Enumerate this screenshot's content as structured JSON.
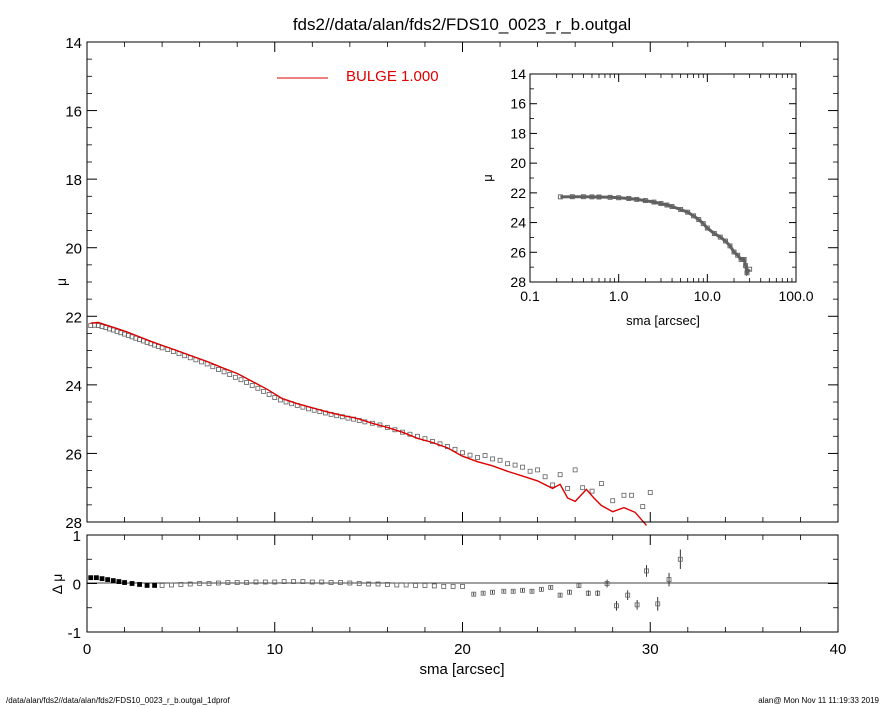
{
  "footer": {
    "left": "/data/alan/fds2//data/alan/fds2/FDS10_0023_r_b.outgal_1dprof",
    "right": "alan@  Mon Nov 11 11:19:33 2019"
  },
  "colors": {
    "model": "#dd0000",
    "data": "#606060",
    "axes": "#000000"
  },
  "chart_data": [
    {
      "id": "main",
      "type": "scatter",
      "title": "fds2//data/alan/fds2/FDS10_0023_r_b.outgal",
      "xlabel": "",
      "ylabel": "μ",
      "xlim": [
        0,
        40
      ],
      "ylim": [
        28,
        14
      ],
      "y_inverted": true,
      "yticks": [
        14,
        16,
        18,
        20,
        22,
        24,
        26,
        28
      ],
      "legend": {
        "placement": "top-center",
        "label": "BULGE  1.000"
      },
      "series": [
        {
          "name": "data",
          "points": [
            [
              0.2,
              22.27
            ],
            [
              0.4,
              22.26
            ],
            [
              0.6,
              22.27
            ],
            [
              0.8,
              22.3
            ],
            [
              1.0,
              22.33
            ],
            [
              1.2,
              22.37
            ],
            [
              1.4,
              22.4
            ],
            [
              1.6,
              22.44
            ],
            [
              1.8,
              22.48
            ],
            [
              2.0,
              22.52
            ],
            [
              2.2,
              22.56
            ],
            [
              2.4,
              22.6
            ],
            [
              2.6,
              22.64
            ],
            [
              2.8,
              22.68
            ],
            [
              3.0,
              22.72
            ],
            [
              3.2,
              22.76
            ],
            [
              3.4,
              22.8
            ],
            [
              3.6,
              22.84
            ],
            [
              3.8,
              22.88
            ],
            [
              4.0,
              22.92
            ],
            [
              4.3,
              22.97
            ],
            [
              4.6,
              23.03
            ],
            [
              4.9,
              23.09
            ],
            [
              5.2,
              23.15
            ],
            [
              5.5,
              23.21
            ],
            [
              5.8,
              23.27
            ],
            [
              6.1,
              23.33
            ],
            [
              6.4,
              23.39
            ],
            [
              6.7,
              23.47
            ],
            [
              7.0,
              23.55
            ],
            [
              7.3,
              23.62
            ],
            [
              7.6,
              23.7
            ],
            [
              7.9,
              23.78
            ],
            [
              8.2,
              23.85
            ],
            [
              8.5,
              23.93
            ],
            [
              8.8,
              24.02
            ],
            [
              9.1,
              24.1
            ],
            [
              9.4,
              24.19
            ],
            [
              9.7,
              24.28
            ],
            [
              10.0,
              24.37
            ],
            [
              10.3,
              24.44
            ],
            [
              10.6,
              24.5
            ],
            [
              10.9,
              24.55
            ],
            [
              11.2,
              24.6
            ],
            [
              11.5,
              24.65
            ],
            [
              11.8,
              24.7
            ],
            [
              12.1,
              24.74
            ],
            [
              12.4,
              24.78
            ],
            [
              12.7,
              24.82
            ],
            [
              13.0,
              24.86
            ],
            [
              13.3,
              24.9
            ],
            [
              13.6,
              24.93
            ],
            [
              13.9,
              24.97
            ],
            [
              14.2,
              25.0
            ],
            [
              14.5,
              25.04
            ],
            [
              14.8,
              25.08
            ],
            [
              15.2,
              25.12
            ],
            [
              15.6,
              25.17
            ],
            [
              16.0,
              25.24
            ],
            [
              16.4,
              25.31
            ],
            [
              16.8,
              25.38
            ],
            [
              17.2,
              25.44
            ],
            [
              17.6,
              25.5
            ],
            [
              18.0,
              25.57
            ],
            [
              18.4,
              25.65
            ],
            [
              18.8,
              25.72
            ],
            [
              19.2,
              25.8
            ],
            [
              19.6,
              25.88
            ],
            [
              20.0,
              25.98
            ],
            [
              20.4,
              26.05
            ],
            [
              20.8,
              26.12
            ],
            [
              21.2,
              26.06
            ],
            [
              21.6,
              26.16
            ],
            [
              22.0,
              26.2
            ],
            [
              22.4,
              26.3
            ],
            [
              22.8,
              26.34
            ],
            [
              23.2,
              26.4
            ],
            [
              23.6,
              26.52
            ],
            [
              24.0,
              26.48
            ],
            [
              24.4,
              26.68
            ],
            [
              24.8,
              26.92
            ],
            [
              25.2,
              26.62
            ],
            [
              25.6,
              27.02
            ],
            [
              26.0,
              26.48
            ],
            [
              26.4,
              27.0
            ],
            [
              26.9,
              27.1
            ],
            [
              27.4,
              26.88
            ],
            [
              28.0,
              27.38
            ],
            [
              28.6,
              27.22
            ],
            [
              29.0,
              27.22
            ],
            [
              29.6,
              27.55
            ],
            [
              30.0,
              27.14
            ]
          ]
        },
        {
          "name": "BULGE  1.000",
          "points": [
            [
              0.2,
              22.2
            ],
            [
              0.6,
              22.18
            ],
            [
              1.0,
              22.25
            ],
            [
              1.6,
              22.36
            ],
            [
              2.2,
              22.47
            ],
            [
              2.8,
              22.6
            ],
            [
              3.4,
              22.73
            ],
            [
              4.0,
              22.85
            ],
            [
              4.8,
              23.0
            ],
            [
              5.6,
              23.16
            ],
            [
              6.4,
              23.32
            ],
            [
              7.2,
              23.5
            ],
            [
              8.0,
              23.67
            ],
            [
              8.8,
              23.9
            ],
            [
              9.6,
              24.13
            ],
            [
              10.4,
              24.4
            ],
            [
              11.2,
              24.55
            ],
            [
              12.0,
              24.67
            ],
            [
              12.8,
              24.79
            ],
            [
              13.6,
              24.89
            ],
            [
              14.4,
              24.98
            ],
            [
              15.2,
              25.12
            ],
            [
              16.0,
              25.24
            ],
            [
              16.8,
              25.38
            ],
            [
              17.6,
              25.56
            ],
            [
              18.4,
              25.68
            ],
            [
              19.2,
              25.84
            ],
            [
              20.0,
              26.08
            ],
            [
              20.8,
              26.24
            ],
            [
              21.6,
              26.36
            ],
            [
              22.4,
              26.52
            ],
            [
              23.2,
              26.66
            ],
            [
              24.0,
              26.8
            ],
            [
              24.8,
              27.02
            ],
            [
              25.2,
              26.9
            ],
            [
              25.6,
              27.3
            ],
            [
              26.0,
              27.4
            ],
            [
              26.6,
              27.05
            ],
            [
              27.0,
              27.3
            ],
            [
              27.4,
              27.52
            ],
            [
              28.0,
              27.7
            ],
            [
              28.6,
              27.58
            ],
            [
              29.2,
              27.72
            ],
            [
              29.8,
              28.1
            ]
          ]
        }
      ]
    },
    {
      "id": "inset",
      "type": "scatter",
      "title": "",
      "xlabel": "sma [arcsec]",
      "ylabel": "μ",
      "x_scale": "log",
      "xlim": [
        0.1,
        100.0
      ],
      "xtick_labels": [
        "0.1",
        "1.0",
        "10.0",
        "100.0"
      ],
      "xticks": [
        0.1,
        1.0,
        10.0,
        100.0
      ],
      "ylim": [
        28,
        14
      ],
      "y_inverted": true,
      "yticks": [
        14,
        16,
        18,
        20,
        22,
        24,
        26,
        28
      ],
      "series": [
        {
          "name": "data",
          "points": [
            [
              0.22,
              22.27
            ],
            [
              0.3,
              22.26
            ],
            [
              0.4,
              22.26
            ],
            [
              0.5,
              22.27
            ],
            [
              0.6,
              22.28
            ],
            [
              0.8,
              22.3
            ],
            [
              1.0,
              22.33
            ],
            [
              1.3,
              22.38
            ],
            [
              1.6,
              22.44
            ],
            [
              2.0,
              22.52
            ],
            [
              2.5,
              22.62
            ],
            [
              3.0,
              22.72
            ],
            [
              3.5,
              22.82
            ],
            [
              4.0,
              22.92
            ],
            [
              5.0,
              23.12
            ],
            [
              6.0,
              23.3
            ],
            [
              7.0,
              23.55
            ],
            [
              8.0,
              23.8
            ],
            [
              9.0,
              24.07
            ],
            [
              10.0,
              24.37
            ],
            [
              12.0,
              24.74
            ],
            [
              14.0,
              24.98
            ],
            [
              16.0,
              25.24
            ],
            [
              18.0,
              25.57
            ],
            [
              20.0,
              25.98
            ],
            [
              22.0,
              26.2
            ],
            [
              24.0,
              26.48
            ],
            [
              26.0,
              26.48
            ],
            [
              27.0,
              26.9
            ],
            [
              28.0,
              27.38
            ],
            [
              30.0,
              27.14
            ]
          ]
        }
      ]
    },
    {
      "id": "residual",
      "type": "scatter",
      "title": "",
      "xlabel": "sma [arcsec]",
      "ylabel": "Δ μ",
      "xlim": [
        0,
        40
      ],
      "xticks": [
        0,
        10,
        20,
        30,
        40
      ],
      "ylim": [
        -1,
        1
      ],
      "yticks": [
        -1,
        0,
        1
      ],
      "reference_line": 0,
      "series": [
        {
          "name": "residual",
          "points": [
            [
              0.2,
              0.12,
              0
            ],
            [
              0.5,
              0.12,
              0
            ],
            [
              0.8,
              0.1,
              0
            ],
            [
              1.1,
              0.08,
              0
            ],
            [
              1.4,
              0.06,
              0
            ],
            [
              1.7,
              0.04,
              0
            ],
            [
              2.0,
              0.02,
              0
            ],
            [
              2.4,
              0.0,
              0
            ],
            [
              2.8,
              -0.02,
              0
            ],
            [
              3.2,
              -0.04,
              0
            ],
            [
              3.6,
              -0.04,
              0
            ],
            [
              4.0,
              -0.04,
              0
            ],
            [
              4.5,
              -0.03,
              0
            ],
            [
              5.0,
              -0.02,
              0
            ],
            [
              5.5,
              -0.01,
              0
            ],
            [
              6.0,
              0.0,
              0
            ],
            [
              6.5,
              0.0,
              0
            ],
            [
              7.0,
              0.01,
              0
            ],
            [
              7.5,
              0.02,
              0
            ],
            [
              8.0,
              0.02,
              0
            ],
            [
              8.5,
              0.02,
              0
            ],
            [
              9.0,
              0.03,
              0
            ],
            [
              9.5,
              0.03,
              0
            ],
            [
              10.0,
              0.03,
              0
            ],
            [
              10.5,
              0.04,
              0
            ],
            [
              11.0,
              0.04,
              0
            ],
            [
              11.5,
              0.04,
              0
            ],
            [
              12.0,
              0.03,
              0
            ],
            [
              12.5,
              0.03,
              0
            ],
            [
              13.0,
              0.02,
              0
            ],
            [
              13.5,
              0.02,
              0
            ],
            [
              14.0,
              0.01,
              0
            ],
            [
              14.5,
              0.0,
              0
            ],
            [
              15.0,
              -0.01,
              0
            ],
            [
              15.5,
              -0.01,
              0
            ],
            [
              16.0,
              -0.02,
              0
            ],
            [
              16.5,
              -0.03,
              0
            ],
            [
              17.0,
              -0.03,
              0
            ],
            [
              17.5,
              -0.04,
              0
            ],
            [
              18.0,
              -0.04,
              0
            ],
            [
              18.5,
              -0.05,
              0
            ],
            [
              19.0,
              -0.06,
              0
            ],
            [
              19.5,
              -0.06,
              0
            ],
            [
              20.0,
              -0.06,
              0
            ],
            [
              20.6,
              -0.22,
              0.03
            ],
            [
              21.1,
              -0.2,
              0.03
            ],
            [
              21.6,
              -0.18,
              0.03
            ],
            [
              22.2,
              -0.16,
              0.03
            ],
            [
              22.7,
              -0.16,
              0.03
            ],
            [
              23.2,
              -0.14,
              0.03
            ],
            [
              23.7,
              -0.16,
              0.03
            ],
            [
              24.2,
              -0.12,
              0.03
            ],
            [
              24.7,
              -0.08,
              0.03
            ],
            [
              25.2,
              -0.24,
              0.04
            ],
            [
              25.7,
              -0.18,
              0.05
            ],
            [
              26.2,
              -0.04,
              0.05
            ],
            [
              26.7,
              -0.2,
              0.06
            ],
            [
              27.2,
              -0.2,
              0.06
            ],
            [
              27.7,
              0.0,
              0.08
            ],
            [
              28.2,
              -0.46,
              0.1
            ],
            [
              28.8,
              -0.24,
              0.1
            ],
            [
              29.3,
              -0.44,
              0.1
            ],
            [
              29.8,
              0.26,
              0.12
            ],
            [
              30.4,
              -0.42,
              0.14
            ],
            [
              31.0,
              0.08,
              0.14
            ],
            [
              31.6,
              0.5,
              0.2
            ]
          ]
        }
      ]
    }
  ]
}
